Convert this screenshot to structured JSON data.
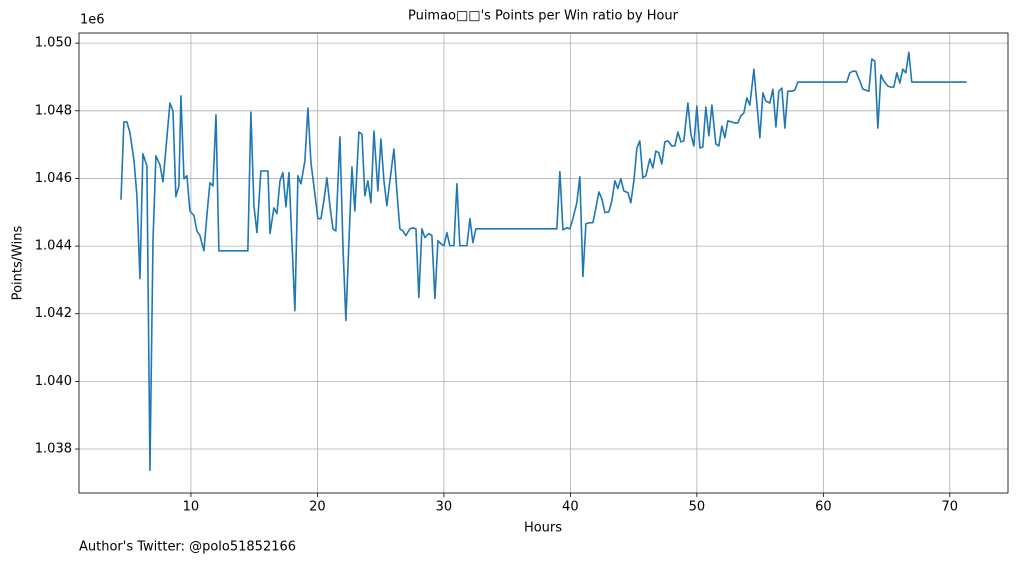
{
  "chart_data": {
    "type": "line",
    "title": "Puimao□□'s Points per Win ratio by Hour",
    "xlabel": "Hours",
    "ylabel": "Points/Wins",
    "y_offset_label": "1e6",
    "footnote": "Author's Twitter: @polo51852166",
    "color": "#1f77b4",
    "grid": true,
    "xlim": [
      1.15,
      74.6
    ],
    "ylim": [
      1.0367,
      1.0503
    ],
    "xticks": [
      10,
      20,
      30,
      40,
      50,
      60,
      70
    ],
    "yticks": [
      1.038,
      {
        "value": 1.04,
        "label": "1.040"
      },
      1.042,
      1.044,
      1.046,
      1.048,
      {
        "value": 1.05,
        "label": "1.050"
      }
    ],
    "x": [
      4.47,
      4.7,
      4.94,
      5.18,
      5.5,
      5.73,
      5.97,
      6.2,
      6.52,
      6.76,
      7.0,
      7.23,
      7.55,
      7.79,
      8.02,
      8.34,
      8.58,
      8.81,
      9.05,
      9.21,
      9.45,
      9.68,
      9.92,
      10.24,
      10.47,
      10.71,
      11.03,
      11.26,
      11.5,
      11.74,
      11.98,
      12.21,
      14.5,
      14.74,
      14.98,
      15.22,
      15.53,
      15.85,
      16.09,
      16.25,
      16.56,
      16.8,
      17.04,
      17.27,
      17.51,
      17.75,
      18.22,
      18.46,
      18.7,
      19.01,
      19.25,
      19.49,
      19.72,
      20.04,
      20.28,
      20.51,
      20.75,
      20.99,
      21.23,
      21.46,
      21.78,
      22.02,
      22.25,
      22.49,
      22.73,
      22.96,
      23.28,
      23.52,
      23.75,
      23.99,
      24.23,
      24.47,
      24.78,
      25.02,
      25.26,
      25.49,
      25.73,
      26.05,
      26.28,
      26.52,
      26.76,
      26.99,
      27.31,
      27.55,
      27.79,
      28.02,
      28.26,
      28.5,
      28.81,
      29.05,
      29.29,
      29.53,
      29.76,
      30.0,
      30.24,
      30.47,
      30.79,
      31.03,
      31.26,
      31.58,
      31.82,
      32.06,
      32.29,
      32.53,
      38.93,
      39.17,
      39.41,
      39.72,
      39.96,
      40.2,
      40.51,
      40.75,
      40.99,
      41.23,
      41.54,
      41.78,
      42.02,
      42.25,
      42.49,
      42.73,
      43.04,
      43.28,
      43.52,
      43.75,
      43.99,
      44.23,
      44.55,
      44.78,
      45.02,
      45.26,
      45.49,
      45.73,
      45.97,
      46.28,
      46.52,
      46.76,
      46.99,
      47.23,
      47.47,
      47.71,
      48.02,
      48.26,
      48.5,
      48.74,
      48.97,
      49.29,
      49.53,
      49.76,
      50.0,
      50.24,
      50.47,
      50.71,
      50.95,
      51.19,
      51.5,
      51.74,
      51.98,
      52.21,
      52.45,
      52.77,
      53.0,
      53.24,
      53.48,
      53.72,
      53.95,
      54.19,
      54.51,
      54.74,
      54.98,
      55.22,
      55.45,
      55.77,
      56.01,
      56.25,
      56.48,
      56.72,
      56.96,
      57.19,
      57.51,
      57.75,
      57.98,
      61.86,
      62.09,
      62.33,
      62.57,
      62.89,
      63.12,
      63.36,
      63.6,
      63.83,
      64.07,
      64.31,
      64.55,
      64.78,
      65.1,
      65.34,
      65.57,
      65.81,
      66.05,
      66.28,
      66.52,
      66.76,
      66.99,
      71.34
    ],
    "values": [
      1.04537,
      1.04767,
      1.04767,
      1.04735,
      1.04652,
      1.04549,
      1.04304,
      1.04673,
      1.04637,
      1.03737,
      1.04416,
      1.04667,
      1.0464,
      1.0459,
      1.04687,
      1.04823,
      1.04799,
      1.04546,
      1.04578,
      1.04844,
      1.04599,
      1.04608,
      1.04504,
      1.0449,
      1.04445,
      1.04431,
      1.04386,
      1.0449,
      1.04587,
      1.04578,
      1.04788,
      1.04386,
      1.04386,
      1.04796,
      1.04519,
      1.0444,
      1.04622,
      1.04622,
      1.04622,
      1.04437,
      1.04513,
      1.04496,
      1.04593,
      1.04617,
      1.04516,
      1.04617,
      1.04209,
      1.04608,
      1.04584,
      1.04652,
      1.04808,
      1.04646,
      1.04578,
      1.04481,
      1.04481,
      1.04534,
      1.04602,
      1.04519,
      1.04451,
      1.04445,
      1.04723,
      1.04398,
      1.0418,
      1.0441,
      1.04634,
      1.04504,
      1.04737,
      1.04731,
      1.04549,
      1.04593,
      1.04528,
      1.0474,
      1.04563,
      1.04717,
      1.04593,
      1.04519,
      1.04593,
      1.04687,
      1.04563,
      1.04451,
      1.04445,
      1.04431,
      1.04451,
      1.04454,
      1.04451,
      1.04248,
      1.04451,
      1.04425,
      1.04437,
      1.04431,
      1.04245,
      1.04416,
      1.04407,
      1.04401,
      1.0444,
      1.04401,
      1.04401,
      1.04584,
      1.04401,
      1.04401,
      1.04401,
      1.04481,
      1.0441,
      1.04451,
      1.04451,
      1.0462,
      1.04448,
      1.04454,
      1.04451,
      1.04481,
      1.04528,
      1.04605,
      1.0431,
      1.04466,
      1.04469,
      1.04469,
      1.04513,
      1.0456,
      1.0454,
      1.04499,
      1.04501,
      1.04534,
      1.04593,
      1.0457,
      1.04599,
      1.04563,
      1.04558,
      1.04528,
      1.04593,
      1.0469,
      1.04711,
      1.04602,
      1.04608,
      1.04658,
      1.04631,
      1.04681,
      1.04676,
      1.04643,
      1.04708,
      1.04711,
      1.04696,
      1.04696,
      1.04737,
      1.04708,
      1.04711,
      1.04823,
      1.04731,
      1.04696,
      1.04814,
      1.0469,
      1.04693,
      1.04811,
      1.04726,
      1.04817,
      1.04702,
      1.04696,
      1.04755,
      1.0472,
      1.0477,
      1.04767,
      1.04764,
      1.04764,
      1.04785,
      1.04794,
      1.04838,
      1.04817,
      1.04923,
      1.04823,
      1.0472,
      1.04853,
      1.04829,
      1.04823,
      1.04864,
      1.04752,
      1.04858,
      1.04867,
      1.04749,
      1.04858,
      1.04858,
      1.04861,
      1.04885,
      1.04885,
      1.04912,
      1.04917,
      1.04917,
      1.04888,
      1.04864,
      1.04861,
      1.04858,
      1.04953,
      1.04947,
      1.04749,
      1.04906,
      1.04888,
      1.04873,
      1.0487,
      1.0487,
      1.04912,
      1.04882,
      1.04923,
      1.04912,
      1.04973,
      1.04885,
      1.04885
    ]
  }
}
